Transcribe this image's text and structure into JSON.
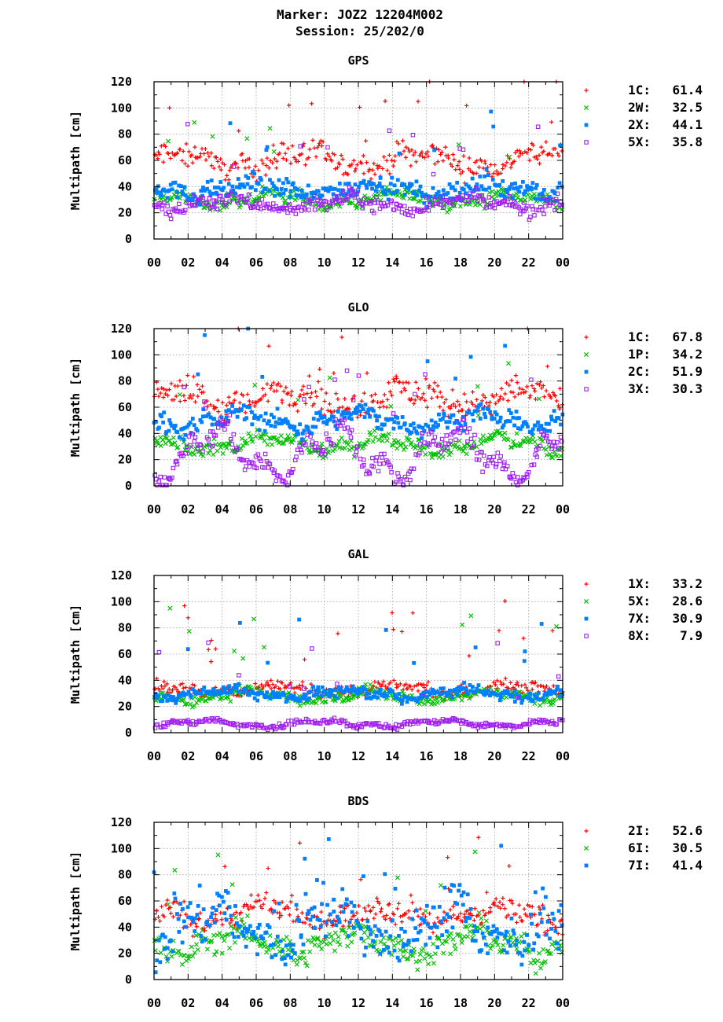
{
  "header": {
    "line1": "Marker: JOZ2 12204M002",
    "line2": "Session: 25/202/0"
  },
  "colors": {
    "series_1": "#ff0000",
    "series_2": "#00c000",
    "series_3": "#0080ff",
    "series_4": "#a020f0",
    "grid": "#a0a0a0"
  },
  "chart_data": [
    {
      "type": "scatter",
      "title": "GPS",
      "ylabel": "Multipath [cm]",
      "xlabel": "",
      "xlim": [
        0,
        24
      ],
      "ylim": [
        0,
        120
      ],
      "x_tick_labels": [
        "00",
        "02",
        "04",
        "06",
        "08",
        "10",
        "12",
        "14",
        "16",
        "18",
        "20",
        "22",
        "00"
      ],
      "y_tick_labels": [
        "0",
        "20",
        "40",
        "60",
        "80",
        "100",
        "120"
      ],
      "grid": true,
      "legend": "right",
      "series": [
        {
          "name": "1C",
          "mean_label": "61.4",
          "marker": "plus",
          "color": "#ff0000",
          "base": 60,
          "amp": 6,
          "spread": 6
        },
        {
          "name": "2W",
          "mean_label": "32.5",
          "marker": "cross",
          "color": "#00c000",
          "base": 30,
          "amp": 4,
          "spread": 4
        },
        {
          "name": "2X",
          "mean_label": "44.1",
          "marker": "square",
          "color": "#0080ff",
          "base": 38,
          "amp": 4,
          "spread": 5
        },
        {
          "name": "5X",
          "mean_label": "35.8",
          "marker": "opensquare",
          "color": "#a020f0",
          "base": 27,
          "amp": 4,
          "spread": 4
        }
      ]
    },
    {
      "type": "scatter",
      "title": "GLO",
      "ylabel": "Multipath [cm]",
      "xlabel": "",
      "xlim": [
        0,
        24
      ],
      "ylim": [
        0,
        120
      ],
      "x_tick_labels": [
        "00",
        "02",
        "04",
        "06",
        "08",
        "10",
        "12",
        "14",
        "16",
        "18",
        "20",
        "22",
        "00"
      ],
      "y_tick_labels": [
        "0",
        "20",
        "40",
        "60",
        "80",
        "100",
        "120"
      ],
      "grid": true,
      "legend": "right",
      "series": [
        {
          "name": "1C",
          "mean_label": "67.8",
          "marker": "plus",
          "color": "#ff0000",
          "base": 67,
          "amp": 7,
          "spread": 8
        },
        {
          "name": "1P",
          "mean_label": "34.2",
          "marker": "cross",
          "color": "#00c000",
          "base": 32,
          "amp": 5,
          "spread": 4
        },
        {
          "name": "2C",
          "mean_label": "51.9",
          "marker": "square",
          "color": "#0080ff",
          "base": 50,
          "amp": 5,
          "spread": 5
        },
        {
          "name": "3X",
          "mean_label": "30.3",
          "marker": "opensquare",
          "color": "#a020f0",
          "base": 25,
          "amp": 16,
          "spread": 6
        }
      ]
    },
    {
      "type": "scatter",
      "title": "GAL",
      "ylabel": "Multipath [cm]",
      "xlabel": "",
      "xlim": [
        0,
        24
      ],
      "ylim": [
        0,
        120
      ],
      "x_tick_labels": [
        "00",
        "02",
        "04",
        "06",
        "08",
        "10",
        "12",
        "14",
        "16",
        "18",
        "20",
        "22",
        "00"
      ],
      "y_tick_labels": [
        "0",
        "20",
        "40",
        "60",
        "80",
        "100",
        "120"
      ],
      "grid": true,
      "legend": "right",
      "series": [
        {
          "name": "1X",
          "mean_label": "33.2",
          "marker": "plus",
          "color": "#ff0000",
          "base": 33,
          "amp": 3,
          "spread": 3
        },
        {
          "name": "5X",
          "mean_label": "28.6",
          "marker": "cross",
          "color": "#00c000",
          "base": 28,
          "amp": 3,
          "spread": 3
        },
        {
          "name": "7X",
          "mean_label": "30.9",
          "marker": "square",
          "color": "#0080ff",
          "base": 30,
          "amp": 3,
          "spread": 3
        },
        {
          "name": "8X",
          "mean_label": "7.9",
          "marker": "opensquare",
          "color": "#a020f0",
          "base": 7,
          "amp": 2,
          "spread": 1.5
        }
      ]
    },
    {
      "type": "scatter",
      "title": "BDS",
      "ylabel": "Multipath [cm]",
      "xlabel": "",
      "xlim": [
        0,
        24
      ],
      "ylim": [
        0,
        120
      ],
      "x_tick_labels": [
        "00",
        "02",
        "04",
        "06",
        "08",
        "10",
        "12",
        "14",
        "16",
        "18",
        "20",
        "22",
        "00"
      ],
      "y_tick_labels": [
        "0",
        "20",
        "40",
        "60",
        "80",
        "100",
        "120"
      ],
      "grid": true,
      "legend": "right",
      "series": [
        {
          "name": "2I",
          "mean_label": "52.6",
          "marker": "plus",
          "color": "#ff0000",
          "base": 50,
          "amp": 5,
          "spread": 7
        },
        {
          "name": "6I",
          "mean_label": "30.5",
          "marker": "cross",
          "color": "#00c000",
          "base": 28,
          "amp": 8,
          "spread": 7
        },
        {
          "name": "7I",
          "mean_label": "41.4",
          "marker": "square",
          "color": "#0080ff",
          "base": 40,
          "amp": 14,
          "spread": 14
        }
      ]
    }
  ]
}
